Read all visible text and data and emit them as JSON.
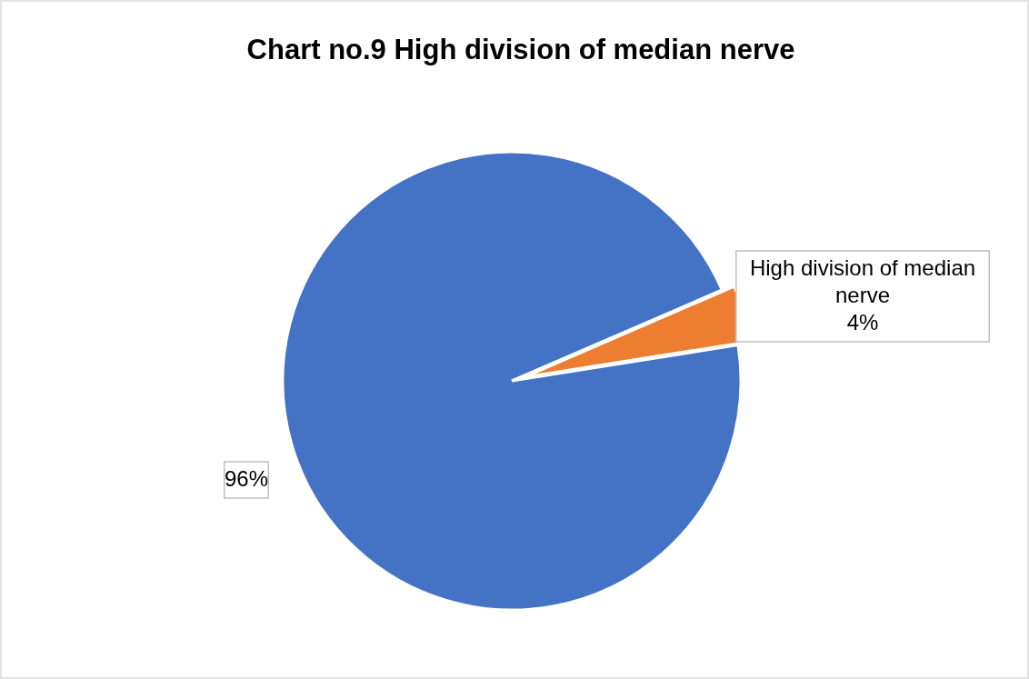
{
  "chart_data": {
    "type": "pie",
    "title": "Chart no.9 High division of median nerve",
    "categories": [
      null,
      "High division of median nerve"
    ],
    "values": [
      96,
      4
    ],
    "colors": [
      "#4472c4",
      "#ed7d31"
    ],
    "value_labels": [
      "96%",
      "4%"
    ]
  }
}
